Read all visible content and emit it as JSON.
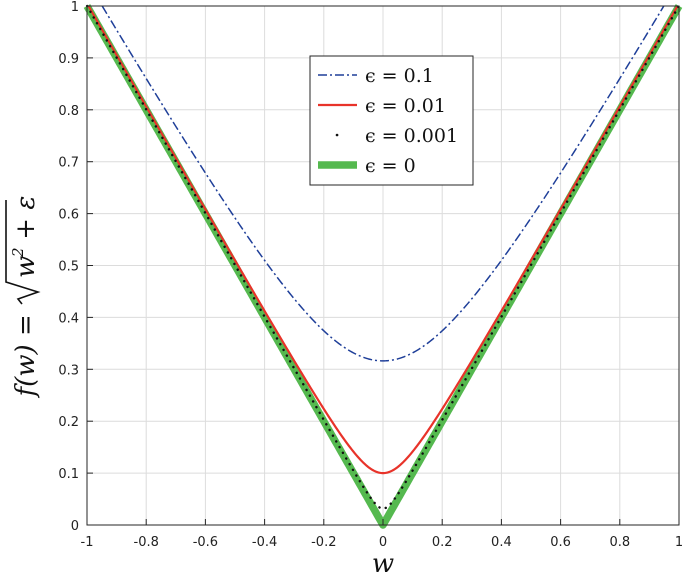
{
  "chart_data": {
    "type": "line",
    "xlabel": "w",
    "ylabel": {
      "lhs": "f(w) = ",
      "radicand": "w",
      "exponent": "2",
      "tail": " + ε"
    },
    "xlim": [
      -1,
      1
    ],
    "ylim": [
      0,
      1
    ],
    "x_ticks": [
      "-1",
      "-0.8",
      "-0.6",
      "-0.4",
      "-0.2",
      "0",
      "0.2",
      "0.4",
      "0.6",
      "0.8",
      "1"
    ],
    "y_ticks": [
      "0",
      "0.1",
      "0.2",
      "0.3",
      "0.4",
      "0.5",
      "0.6",
      "0.7",
      "0.8",
      "0.9",
      "1"
    ],
    "grid": true,
    "legend_position": "top-center",
    "formula": "sqrt(w^2 + epsilon)",
    "series": [
      {
        "name": "ϵ = 0.1",
        "epsilon": 0.1,
        "style": "dash-dot",
        "color": "#1f3f99"
      },
      {
        "name": "ϵ = 0.01",
        "epsilon": 0.01,
        "style": "solid",
        "color": "#e8332a"
      },
      {
        "name": "ϵ = 0.001",
        "epsilon": 0.001,
        "style": "dotted",
        "color": "#111111"
      },
      {
        "name": "ϵ = 0",
        "epsilon": 0,
        "style": "thick-solid",
        "color": "#55b94f"
      }
    ]
  }
}
